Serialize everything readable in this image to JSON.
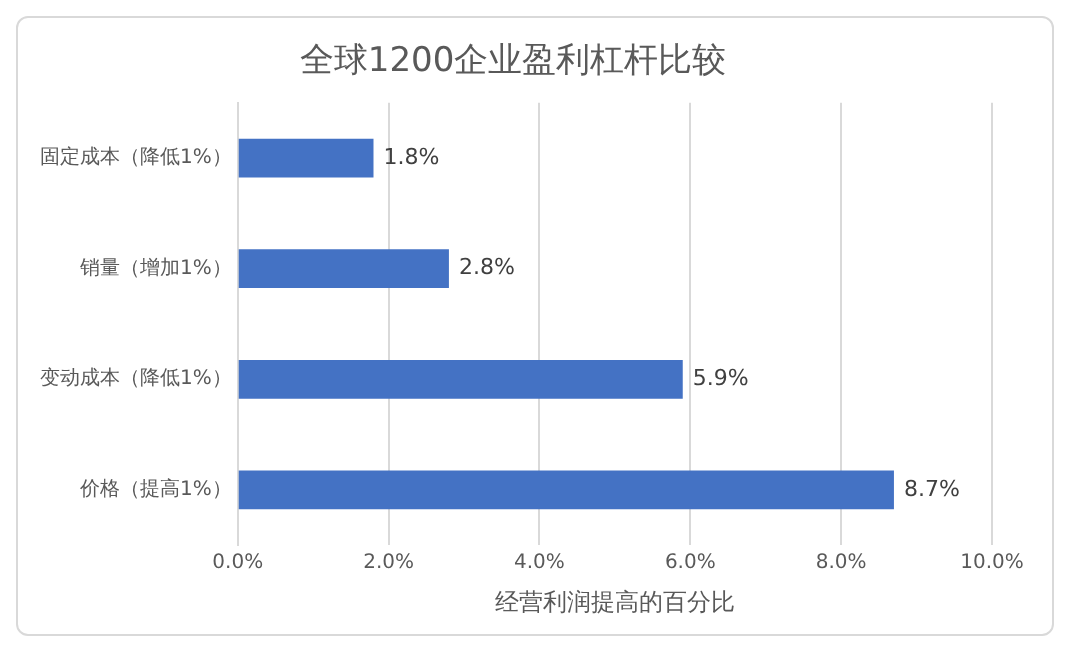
{
  "chart_data": {
    "type": "bar",
    "orientation": "horizontal",
    "title": "全球1200企业盈利杠杆比较",
    "xlabel": "经营利润提高的百分比",
    "categories": [
      "固定成本（降低1%）",
      "销量（增加1%）",
      "变动成本（降低1%）",
      "价格（提高1%）"
    ],
    "values": [
      1.8,
      2.8,
      5.9,
      8.7
    ],
    "value_labels": [
      "1.8%",
      "2.8%",
      "5.9%",
      "8.7%"
    ],
    "color": "#4472c4",
    "xlim": [
      0,
      10
    ],
    "xticks": [
      {
        "value": 0,
        "label": "0.0%"
      },
      {
        "value": 2,
        "label": "2.0%"
      },
      {
        "value": 4,
        "label": "4.0%"
      },
      {
        "value": 6,
        "label": "6.0%"
      },
      {
        "value": 8,
        "label": "8.0%"
      },
      {
        "value": 10,
        "label": "10.0%"
      }
    ],
    "grid": "x",
    "legend": false
  }
}
